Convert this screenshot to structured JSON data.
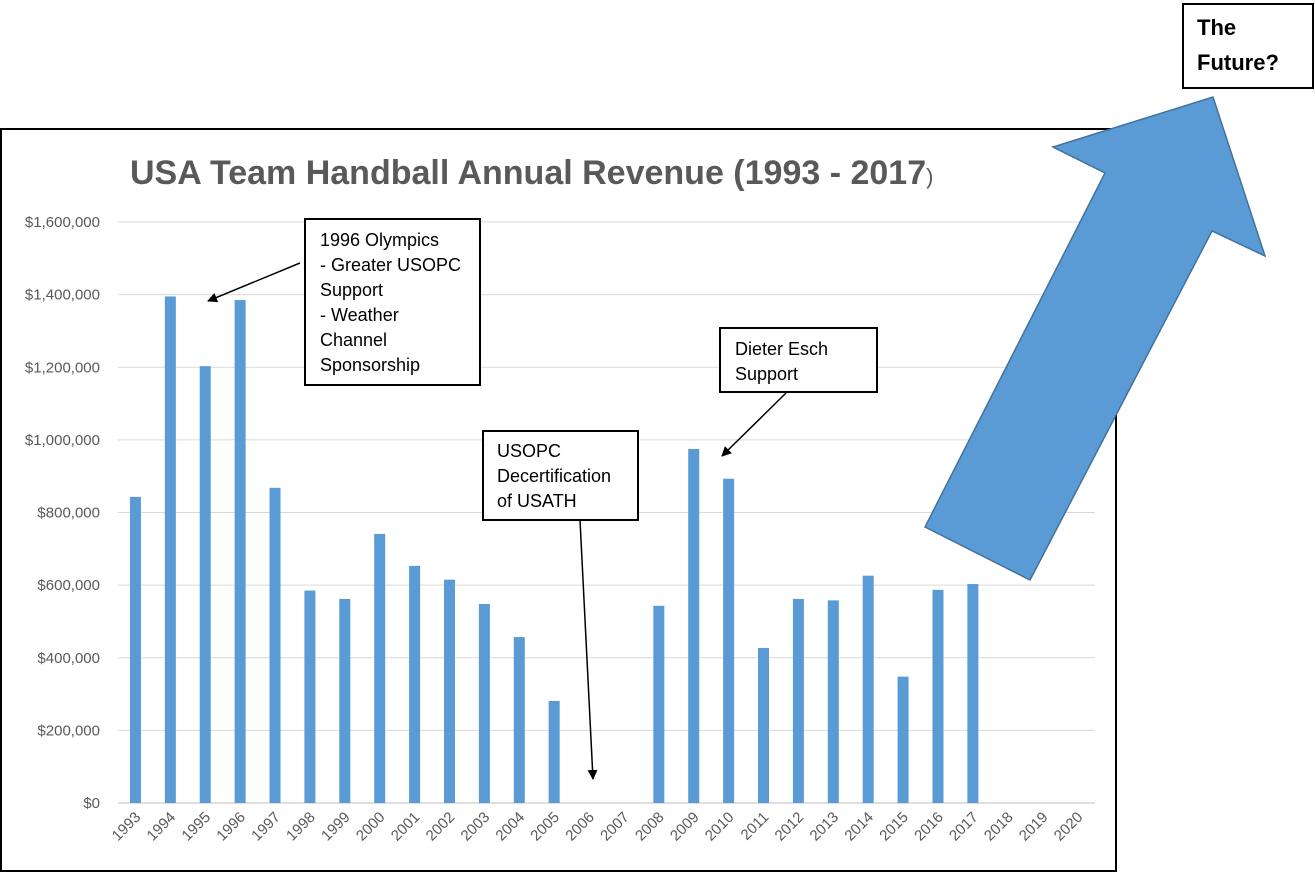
{
  "chart_data": {
    "type": "bar",
    "title": "USA Team Handball Annual Revenue (1993 - 2017",
    "title_suffix": ")",
    "xlabel": "",
    "ylabel": "",
    "ylim": [
      0,
      1600000
    ],
    "y_ticks": [
      0,
      200000,
      400000,
      600000,
      800000,
      1000000,
      1200000,
      1400000,
      1600000
    ],
    "y_tick_labels": [
      "$0",
      "$200,000",
      "$400,000",
      "$600,000",
      "$800,000",
      "$1,000,000",
      "$1,200,000",
      "$1,400,000",
      "$1,600,000"
    ],
    "grid": true,
    "legend": "none",
    "bar_color": "#5b9bd5",
    "categories": [
      "1993",
      "1994",
      "1995",
      "1996",
      "1997",
      "1998",
      "1999",
      "2000",
      "2001",
      "2002",
      "2003",
      "2004",
      "2005",
      "2006",
      "2007",
      "2008",
      "2009",
      "2010",
      "2011",
      "2012",
      "2013",
      "2014",
      "2015",
      "2016",
      "2017",
      "2018",
      "2019",
      "2020"
    ],
    "values": [
      843000,
      1395000,
      1203000,
      1385000,
      868000,
      585000,
      562000,
      741000,
      653000,
      615000,
      548000,
      457000,
      281000,
      null,
      null,
      543000,
      975000,
      893000,
      427000,
      562000,
      558000,
      626000,
      348000,
      587000,
      603000,
      null,
      null,
      null
    ],
    "annotations": [
      {
        "lines": [
          "1996 Olympics",
          "- Greater USOPC",
          "Support",
          "- Weather",
          "Channel",
          "Sponsorship"
        ],
        "points_to": "1995"
      },
      {
        "lines": [
          "Dieter Esch",
          "Support"
        ],
        "points_to": "2010"
      },
      {
        "lines": [
          "USOPC",
          "Decertification",
          "of USATH"
        ],
        "points_to": "2006"
      }
    ],
    "callout": {
      "lines": [
        "The",
        "Future?"
      ],
      "arrow_color": "#5b9bd5"
    }
  }
}
